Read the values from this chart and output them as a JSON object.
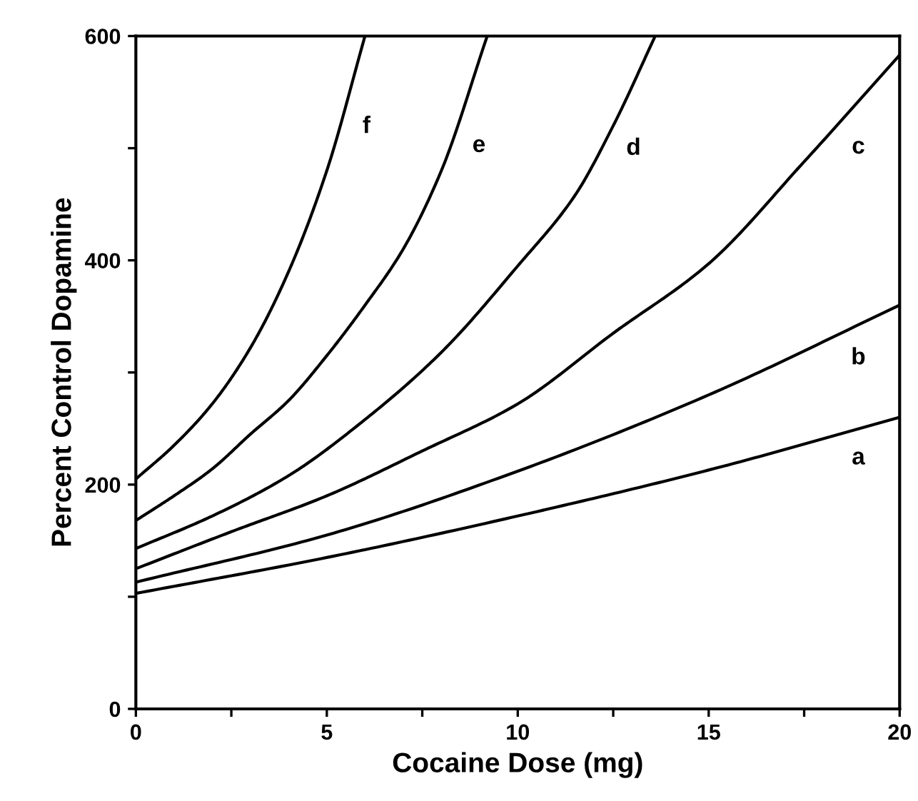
{
  "chart_data": {
    "type": "line",
    "xlabel": "Cocaine Dose (mg)",
    "ylabel": "Percent Control Dopamine",
    "series": [
      {
        "name": "a",
        "color": "#000000",
        "x": [
          0,
          5,
          10,
          15,
          20
        ],
        "values": [
          103,
          135,
          172,
          213,
          260
        ]
      },
      {
        "name": "b",
        "color": "#000000",
        "x": [
          0,
          5,
          10,
          15,
          20
        ],
        "values": [
          113,
          155,
          212,
          280,
          360
        ]
      },
      {
        "name": "c",
        "color": "#000000",
        "x": [
          0,
          2.5,
          5,
          7.5,
          10,
          12.5,
          15,
          17.5,
          20
        ],
        "values": [
          125,
          158,
          190,
          230,
          272,
          335,
          397,
          488,
          583
        ]
      },
      {
        "name": "d",
        "color": "#000000",
        "x": [
          0,
          2,
          4,
          6,
          8,
          10,
          11.5,
          12.5,
          13.6
        ],
        "values": [
          143,
          172,
          208,
          258,
          318,
          395,
          458,
          520,
          600
        ]
      },
      {
        "name": "e",
        "color": "#000000",
        "x": [
          0,
          1,
          2,
          3,
          4,
          5,
          6,
          7,
          8,
          9.2
        ],
        "values": [
          168,
          190,
          214,
          245,
          275,
          315,
          360,
          410,
          480,
          600
        ]
      },
      {
        "name": "f",
        "color": "#000000",
        "x": [
          0,
          1,
          2,
          3,
          4,
          5,
          6
        ],
        "values": [
          205,
          235,
          272,
          322,
          390,
          480,
          600
        ]
      }
    ],
    "xlim": [
      0,
      20
    ],
    "ylim": [
      0,
      600
    ],
    "xticks": [
      0,
      {
        "value": 2.5,
        "label": null
      },
      5,
      {
        "value": 7.5,
        "label": null
      },
      10,
      {
        "value": 12.5,
        "label": null
      },
      15,
      {
        "value": 17.5,
        "label": null
      },
      20
    ],
    "yticks": [
      0,
      {
        "value": 100,
        "label": null
      },
      200,
      {
        "value": 300,
        "label": null
      },
      400,
      {
        "value": 500,
        "label": null
      },
      600
    ],
    "grid": false,
    "legend": false,
    "marker": "none",
    "line_style": "solid"
  }
}
